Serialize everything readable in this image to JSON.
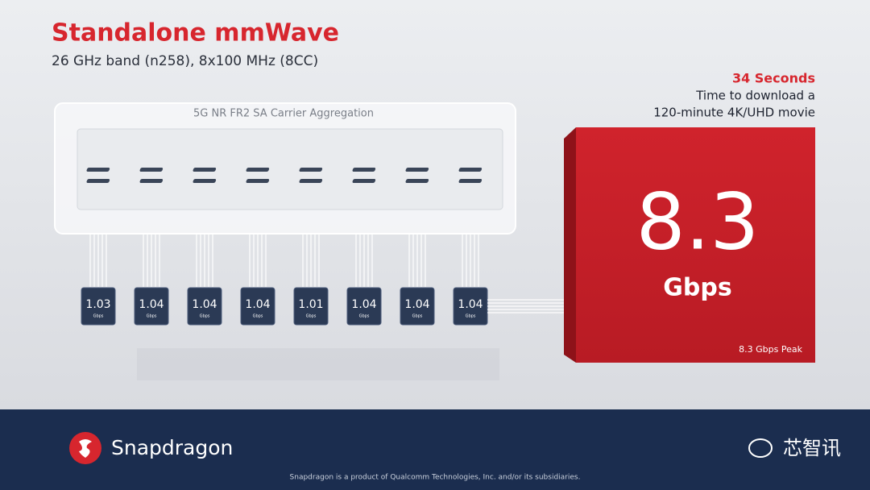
{
  "header": {
    "title": "Standalone mmWave",
    "subtitle": "26 GHz band (n258), 8x100 MHz (8CC)"
  },
  "aggregation": {
    "label": "5G NR FR2 SA Carrier Aggregation",
    "carriers": [
      {
        "value": "1.03",
        "unit": "Gbps"
      },
      {
        "value": "1.04",
        "unit": "Gbps"
      },
      {
        "value": "1.04",
        "unit": "Gbps"
      },
      {
        "value": "1.04",
        "unit": "Gbps"
      },
      {
        "value": "1.01",
        "unit": "Gbps"
      },
      {
        "value": "1.04",
        "unit": "Gbps"
      },
      {
        "value": "1.04",
        "unit": "Gbps"
      },
      {
        "value": "1.04",
        "unit": "Gbps"
      }
    ]
  },
  "callout": {
    "highlight": "34 Seconds",
    "lines": [
      "Time to download a",
      "120-minute 4K/UHD movie"
    ]
  },
  "total": {
    "value": "8.3",
    "unit": "Gbps",
    "note": "8.3 Gbps Peak"
  },
  "footer": {
    "brand": "Snapdragon",
    "disclaimer": "Snapdragon is a product of Qualcomm Technologies, Inc. and/or its subsidiaries.",
    "watermark": "芯智讯"
  }
}
